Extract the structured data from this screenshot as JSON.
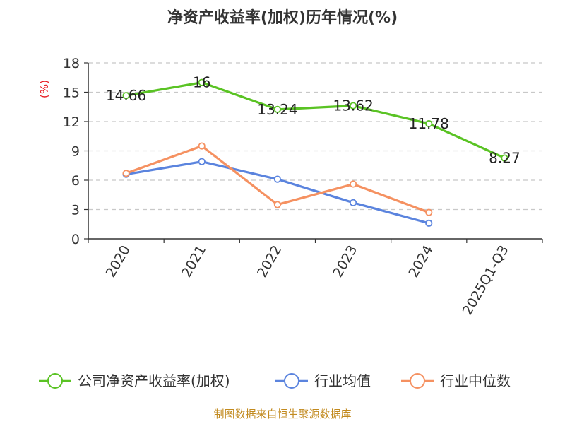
{
  "chart_data": {
    "type": "line",
    "title": "净资产收益率(加权)历年情况(%)",
    "ylabel": "(%)",
    "categories": [
      "2020",
      "2021",
      "2022",
      "2023",
      "2024",
      "2025Q1-Q3"
    ],
    "ylim": [
      0,
      18
    ],
    "yticks": [
      0,
      3,
      6,
      9,
      12,
      15,
      18
    ],
    "grid": true,
    "legend_position": "bottom",
    "series": [
      {
        "name": "公司净资产收益率(加权)",
        "color": "#5ac324",
        "values": [
          14.66,
          16,
          13.24,
          13.62,
          11.78,
          8.27
        ],
        "labels": [
          "14.66",
          "16",
          "13.24",
          "13.62",
          "11.78",
          "8.27"
        ]
      },
      {
        "name": "行业均值",
        "color": "#5b84de",
        "values": [
          6.6,
          7.9,
          6.1,
          3.7,
          1.6,
          null
        ]
      },
      {
        "name": "行业中位数",
        "color": "#f59161",
        "values": [
          6.7,
          9.5,
          3.5,
          5.6,
          2.7,
          null
        ]
      }
    ]
  },
  "source": "制图数据来自恒生聚源数据库"
}
